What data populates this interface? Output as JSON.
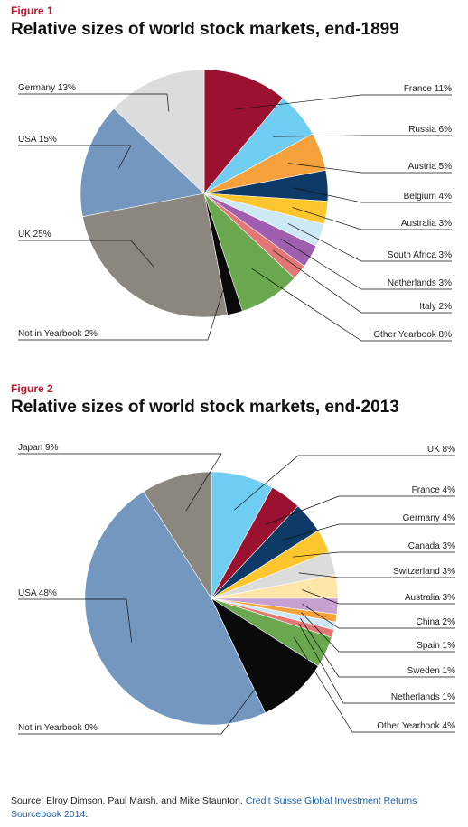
{
  "figures": [
    {
      "label": "Figure 1",
      "title": "Relative sizes of world stock markets, end-1899"
    },
    {
      "label": "Figure 2",
      "title": "Relative sizes of world stock markets, end-2013"
    }
  ],
  "chart_data": [
    {
      "type": "pie",
      "title": "Relative sizes of world stock markets, end-1899",
      "slices": [
        {
          "name": "France",
          "value": 11,
          "label": "France 11%",
          "color": "#9b1230"
        },
        {
          "name": "Russia",
          "value": 6,
          "label": "Russia 6%",
          "color": "#6ecdf0"
        },
        {
          "name": "Austria",
          "value": 5,
          "label": "Austria 5%",
          "color": "#f5a13c"
        },
        {
          "name": "Belgium",
          "value": 4,
          "label": "Belgium 4%",
          "color": "#0d3a66"
        },
        {
          "name": "Australia",
          "value": 3,
          "label": "Australia 3%",
          "color": "#fdc52e"
        },
        {
          "name": "South Africa",
          "value": 3,
          "label": "South Africa 3%",
          "color": "#cde9f5"
        },
        {
          "name": "Netherlands",
          "value": 3,
          "label": "Netherlands 3%",
          "color": "#9f5fae"
        },
        {
          "name": "Italy",
          "value": 2,
          "label": "Italy 2%",
          "color": "#e27776"
        },
        {
          "name": "Other Yearbook",
          "value": 8,
          "label": "Other Yearbook 8%",
          "color": "#6aa84f"
        },
        {
          "name": "Not in Yearbook",
          "value": 2,
          "label": "Not in Yearbook 2%",
          "color": "#0a0a0a"
        },
        {
          "name": "UK",
          "value": 25,
          "label": "UK 25%",
          "color": "#8b877f"
        },
        {
          "name": "USA",
          "value": 15,
          "label": "USA 15%",
          "color": "#7497c0"
        },
        {
          "name": "Germany",
          "value": 13,
          "label": "Germany 13%",
          "color": "#dcdcdc"
        }
      ]
    },
    {
      "type": "pie",
      "title": "Relative sizes of world stock markets, end-2013",
      "slices": [
        {
          "name": "UK",
          "value": 8,
          "label": "UK 8%",
          "color": "#6ecdf0"
        },
        {
          "name": "France",
          "value": 4,
          "label": "France 4%",
          "color": "#9b1230"
        },
        {
          "name": "Germany",
          "value": 4,
          "label": "Germany 4%",
          "color": "#0d3a66"
        },
        {
          "name": "Canada",
          "value": 3,
          "label": "Canada 3%",
          "color": "#fdc52e"
        },
        {
          "name": "Switzerland",
          "value": 3,
          "label": "Switzerland 3%",
          "color": "#dcdcdc"
        },
        {
          "name": "Australia",
          "value": 3,
          "label": "Australia 3%",
          "color": "#fde6a8"
        },
        {
          "name": "China",
          "value": 2,
          "label": "China 2%",
          "color": "#c7a0d2"
        },
        {
          "name": "Spain",
          "value": 1,
          "label": "Spain 1%",
          "color": "#f5a13c"
        },
        {
          "name": "Sweden",
          "value": 1,
          "label": "Sweden 1%",
          "color": "#cde9f5"
        },
        {
          "name": "Netherlands",
          "value": 1,
          "label": "Netherlands 1%",
          "color": "#e27776"
        },
        {
          "name": "Other Yearbook",
          "value": 4,
          "label": "Other Yearbook 4%",
          "color": "#6aa84f"
        },
        {
          "name": "Not in Yearbook",
          "value": 9,
          "label": "Not in Yearbook 9%",
          "color": "#0a0a0a"
        },
        {
          "name": "USA",
          "value": 48,
          "label": "USA 48%",
          "color": "#7497c0"
        },
        {
          "name": "Japan",
          "value": 9,
          "label": "Japan 9%",
          "color": "#8b877f"
        }
      ]
    }
  ],
  "source": {
    "prefix": "Source: Elroy Dimson, Paul Marsh, and Mike Staunton, ",
    "link": "Credit Suisse Global Investment Returns Sourcebook 2014",
    "suffix": "."
  }
}
